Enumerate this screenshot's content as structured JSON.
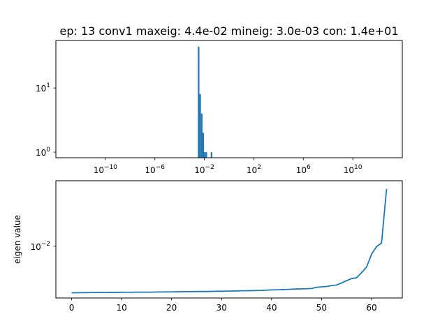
{
  "chart_data": [
    {
      "type": "bar",
      "title": "ep: 13 conv1 maxeig: 4.4e-02 mineig: 3.0e-03 con: 1.4e+01",
      "xscale": "log",
      "yscale": "log",
      "xlim": [
        1e-14,
        100000000000000.0
      ],
      "ylim": [
        0.82,
        55
      ],
      "x_ticks": [
        {
          "value": 1e-10,
          "base": "10",
          "exp": "−10"
        },
        {
          "value": 1e-06,
          "base": "10",
          "exp": "−6"
        },
        {
          "value": 0.01,
          "base": "10",
          "exp": "−2"
        },
        {
          "value": 100.0,
          "base": "10",
          "exp": "2"
        },
        {
          "value": 1000000.0,
          "base": "10",
          "exp": "6"
        },
        {
          "value": 10000000000.0,
          "base": "10",
          "exp": "10"
        }
      ],
      "y_ticks": [
        {
          "value": 1,
          "base": "10",
          "exp": "0"
        },
        {
          "value": 10,
          "base": "10",
          "exp": "1"
        }
      ],
      "bar_color": "#1f77b4",
      "bins": [
        {
          "x0": 0.003,
          "x1": 0.004,
          "count": 44
        },
        {
          "x0": 0.004,
          "x1": 0.0053,
          "count": 8
        },
        {
          "x0": 0.0053,
          "x1": 0.0071,
          "count": 4
        },
        {
          "x0": 0.0071,
          "x1": 0.0094,
          "count": 2
        },
        {
          "x0": 0.0094,
          "x1": 0.0125,
          "count": 1
        },
        {
          "x0": 0.0125,
          "x1": 0.0166,
          "count": 1
        },
        {
          "x0": 0.033,
          "x1": 0.044,
          "count": 1
        }
      ]
    },
    {
      "type": "line",
      "title": "",
      "xlabel": "",
      "ylabel": "eigen value",
      "yscale": "log",
      "xlim": [
        -3.15,
        66.15
      ],
      "ylim": [
        0.00262,
        0.0545
      ],
      "x_ticks": [
        0,
        10,
        20,
        30,
        40,
        50,
        60
      ],
      "y_ticks": [
        {
          "value": 0.01,
          "base": "10",
          "exp": "−2"
        }
      ],
      "line_color": "#1f77b4",
      "series": [
        {
          "x": [
            0,
            1,
            2,
            3,
            4,
            5,
            6,
            7,
            8,
            9,
            10,
            11,
            12,
            13,
            14,
            15,
            16,
            17,
            18,
            19,
            20,
            21,
            22,
            23,
            24,
            25,
            26,
            27,
            28,
            29,
            30,
            31,
            32,
            33,
            34,
            35,
            36,
            37,
            38,
            39,
            40,
            41,
            42,
            43,
            44,
            45,
            46,
            47,
            48,
            49,
            50,
            51,
            52,
            53,
            54,
            55,
            56,
            57,
            58,
            59,
            60,
            61,
            62,
            63
          ],
          "values": [
            0.003,
            0.003,
            0.00301,
            0.00301,
            0.00302,
            0.00302,
            0.00302,
            0.00302,
            0.00303,
            0.00303,
            0.00304,
            0.00304,
            0.00304,
            0.00305,
            0.00305,
            0.00305,
            0.00305,
            0.00306,
            0.00306,
            0.00307,
            0.00307,
            0.00308,
            0.00308,
            0.00309,
            0.00309,
            0.0031,
            0.0031,
            0.0031,
            0.00311,
            0.00312,
            0.00312,
            0.00313,
            0.00314,
            0.00315,
            0.00316,
            0.00316,
            0.00317,
            0.00318,
            0.00319,
            0.00321,
            0.00323,
            0.00324,
            0.00325,
            0.00327,
            0.00329,
            0.00331,
            0.00332,
            0.00333,
            0.00335,
            0.00346,
            0.0035,
            0.00353,
            0.00362,
            0.00367,
            0.00387,
            0.0041,
            0.00433,
            0.00442,
            0.00504,
            0.00584,
            0.00815,
            0.00991,
            0.0109,
            0.044
          ]
        }
      ]
    }
  ]
}
